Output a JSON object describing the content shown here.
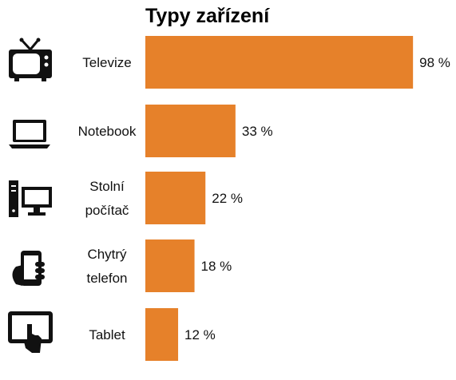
{
  "chart_data": {
    "type": "bar",
    "orientation": "horizontal",
    "title": "Typy zařízení",
    "categories": [
      "Televize",
      "Notebook",
      "Stolní počítač",
      "Chytrý telefon",
      "Tablet"
    ],
    "category_lines": [
      [
        "Televize"
      ],
      [
        "Notebook"
      ],
      [
        "Stolní",
        "počítač"
      ],
      [
        "Chytrý",
        "telefon"
      ],
      [
        "Tablet"
      ]
    ],
    "values": [
      98,
      33,
      22,
      18,
      12
    ],
    "value_labels": [
      "98 %",
      "33 %",
      "22 %",
      "18 %",
      "12 %"
    ],
    "icons": [
      "television-icon",
      "laptop-icon",
      "desktop-computer-icon",
      "smartphone-icon",
      "tablet-icon"
    ],
    "xlim": [
      0,
      100
    ],
    "grid": false,
    "legend": "none",
    "bar_color": "#E6812A"
  }
}
